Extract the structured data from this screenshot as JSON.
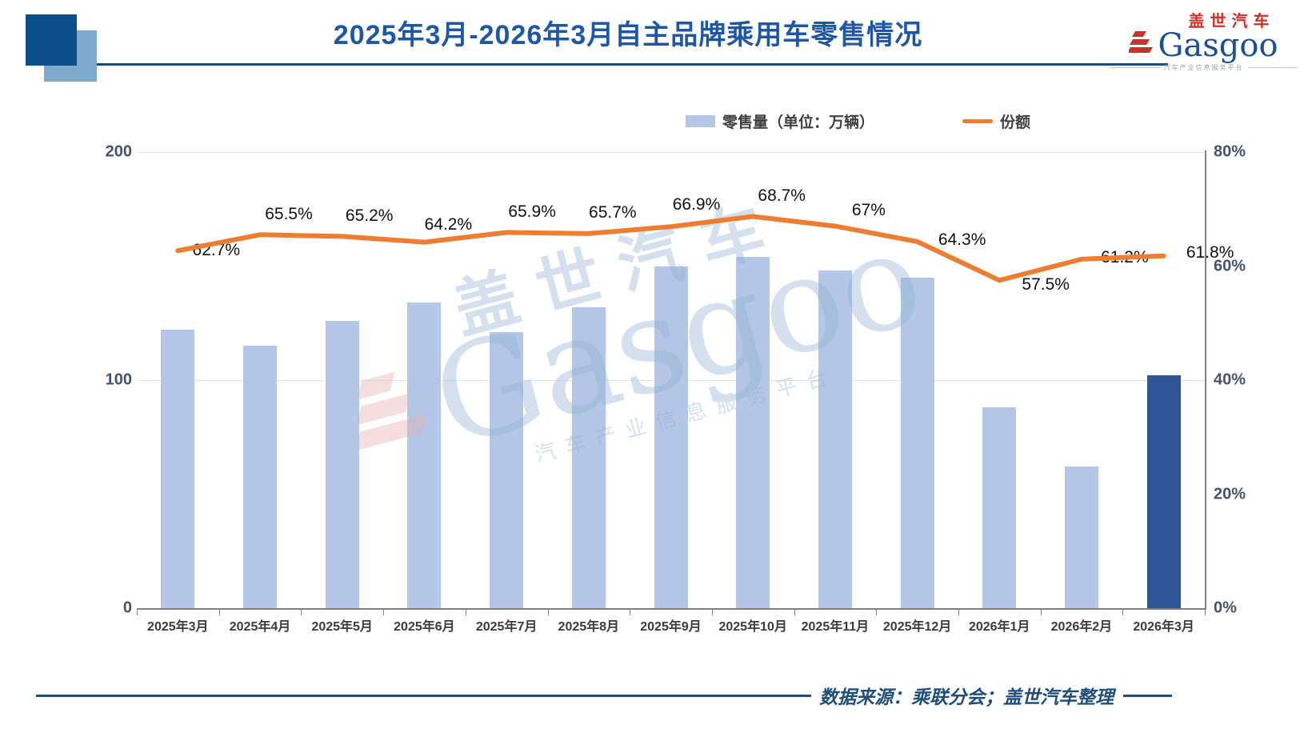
{
  "header": {
    "title": "2025年3月-2026年3月自主品牌乘用车零售情况"
  },
  "brand": {
    "logo_cn": "盖世汽车",
    "logo_en": "Gasgoo",
    "tagline": "汽车产业信息服务平台"
  },
  "watermark": {
    "cn": "盖世汽车",
    "en": "Gasgoo",
    "tagline": "汽车产业信息服务平台"
  },
  "legend": {
    "bar_label": "零售量（单位：万辆）",
    "line_label": "份额"
  },
  "axes": {
    "left_ticks": [
      "200",
      "100",
      "0"
    ],
    "right_ticks": [
      "80%",
      "60%",
      "40%",
      "20%",
      "0%"
    ]
  },
  "footer": {
    "source": "数据来源：乘联分会；盖世汽车整理"
  },
  "chart_data": {
    "type": "bar",
    "subtype": "bar+line combo",
    "title": "2025年3月-2026年3月自主品牌乘用车零售情况",
    "categories": [
      "2025年3月",
      "2025年4月",
      "2025年5月",
      "2025年6月",
      "2025年7月",
      "2025年8月",
      "2025年9月",
      "2025年10月",
      "2025年11月",
      "2025年12月",
      "2026年1月",
      "2026年2月",
      "2026年3月"
    ],
    "series": [
      {
        "name": "零售量（单位：万辆）",
        "type": "bar",
        "axis": "left",
        "values": [
          122,
          115,
          126,
          134,
          121,
          132,
          150,
          154,
          148,
          145,
          88,
          62,
          102
        ],
        "bar_color": "#b4c7e7",
        "highlight_last_color": "#2f5597"
      },
      {
        "name": "份额",
        "type": "line",
        "axis": "right",
        "values": [
          62.7,
          65.5,
          65.2,
          64.2,
          65.9,
          65.7,
          66.9,
          68.7,
          67,
          64.3,
          57.5,
          61.2,
          61.8
        ],
        "labels": [
          "62.7%",
          "65.5%",
          "65.2%",
          "64.2%",
          "65.9%",
          "65.7%",
          "66.9%",
          "68.7%",
          "67%",
          "64.3%",
          "57.5%",
          "61.2%",
          "61.8%"
        ],
        "line_color": "#ed7d31"
      }
    ],
    "left_axis": {
      "min": 0,
      "max": 200,
      "ticks": [
        0,
        100,
        200
      ]
    },
    "right_axis": {
      "min": 0,
      "max": 80,
      "unit": "%",
      "ticks": [
        0,
        20,
        40,
        60,
        80
      ]
    },
    "grid": "horizontal, at left-axis 100 and 200 only",
    "legend_position": "top-center"
  }
}
